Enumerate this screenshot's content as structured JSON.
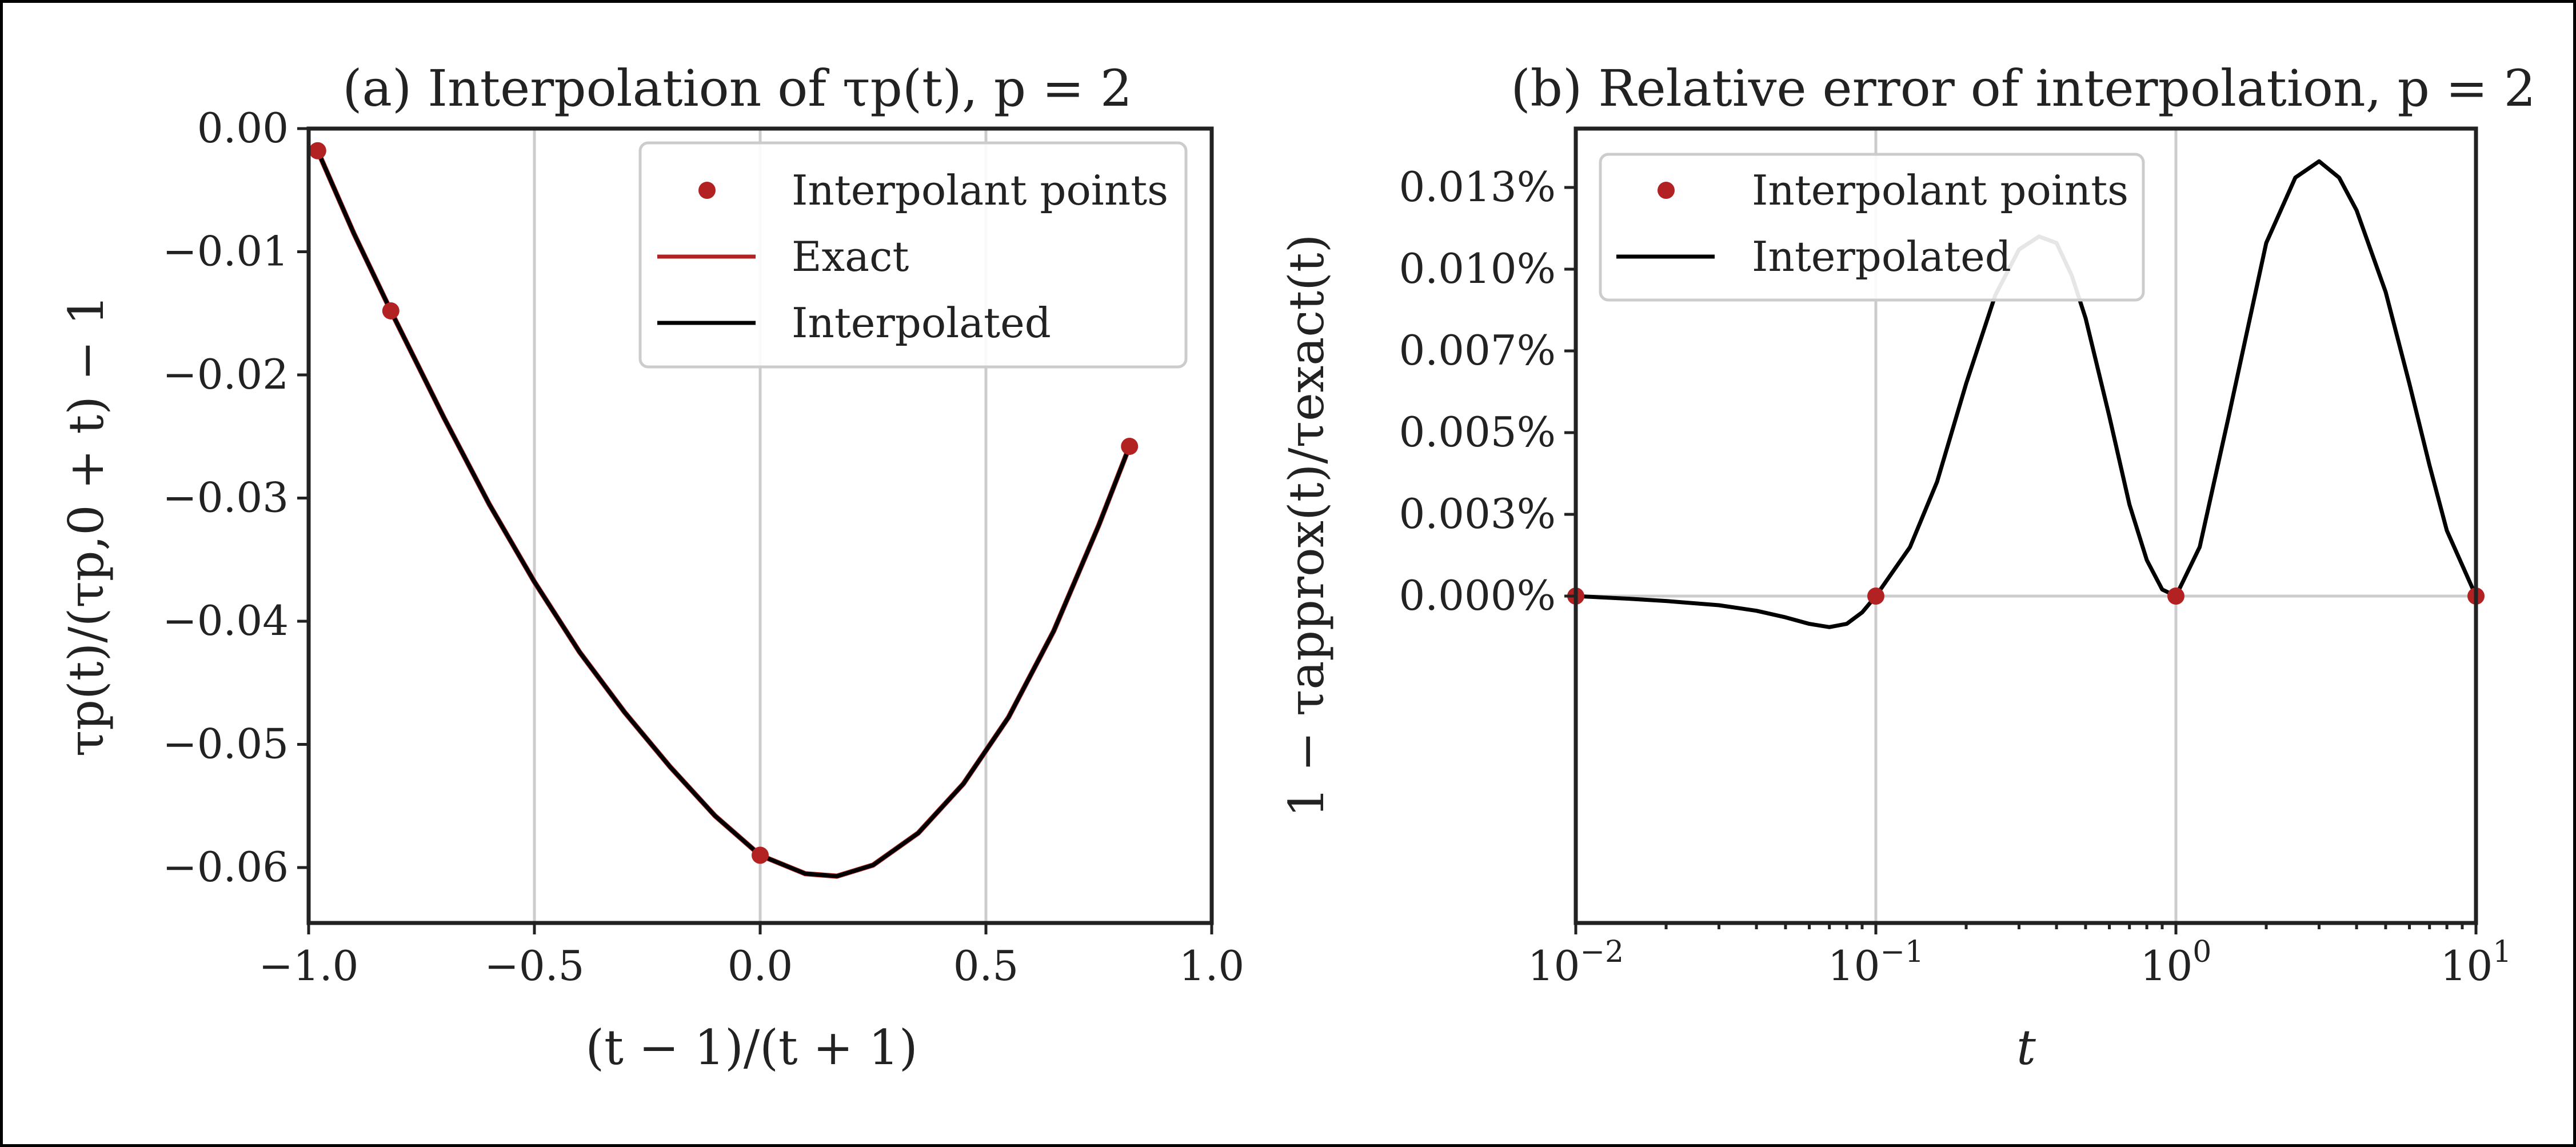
{
  "colors": {
    "exact": "#b22222",
    "interpolated": "#000000",
    "points": "#b22222",
    "grid": "#cccccc",
    "frame": "#222222"
  },
  "chart_data": [
    {
      "id": "a",
      "type": "line",
      "title": "(a) Interpolation of τp(t), p = 2",
      "xlabel": "(t − 1)/(t + 1)",
      "ylabel": "τp(t)/(τp,0 + t) − 1",
      "xlim": [
        -1.0,
        1.0
      ],
      "ylim": [
        -0.0645,
        0.0
      ],
      "x_scale": "linear",
      "xticks": [
        -1.0,
        -0.5,
        0.0,
        0.5,
        1.0
      ],
      "xtick_labels": [
        "−1.0",
        "−0.5",
        "0.0",
        "0.5",
        "1.0"
      ],
      "yticks": [
        0.0,
        -0.01,
        -0.02,
        -0.03,
        -0.04,
        -0.05,
        -0.06
      ],
      "ytick_labels": [
        "0.00",
        "−0.01",
        "−0.02",
        "−0.03",
        "−0.04",
        "−0.05",
        "−0.06"
      ],
      "grid": "vertical",
      "legend_position": "top-right",
      "legend": [
        "Interpolant points",
        "Exact",
        "Interpolated"
      ],
      "series": [
        {
          "name": "Interpolant points",
          "kind": "points",
          "x": [
            -0.98,
            -0.818,
            0.0,
            0.818
          ],
          "y": [
            -0.0018,
            -0.0148,
            -0.059,
            -0.0258
          ]
        },
        {
          "name": "Exact",
          "kind": "line",
          "x": [
            -0.98,
            -0.9,
            -0.818,
            -0.7,
            -0.6,
            -0.5,
            -0.4,
            -0.3,
            -0.2,
            -0.1,
            0.0,
            0.1,
            0.17,
            0.25,
            0.35,
            0.45,
            0.55,
            0.65,
            0.75,
            0.818
          ],
          "y": [
            -0.0018,
            -0.0085,
            -0.0148,
            -0.0235,
            -0.0305,
            -0.0368,
            -0.0425,
            -0.0474,
            -0.0518,
            -0.0558,
            -0.059,
            -0.0605,
            -0.0607,
            -0.0598,
            -0.0572,
            -0.0532,
            -0.0478,
            -0.0408,
            -0.0322,
            -0.0258
          ]
        },
        {
          "name": "Interpolated",
          "kind": "line",
          "x": [
            -0.98,
            -0.9,
            -0.818,
            -0.7,
            -0.6,
            -0.5,
            -0.4,
            -0.3,
            -0.2,
            -0.1,
            0.0,
            0.1,
            0.17,
            0.25,
            0.35,
            0.45,
            0.55,
            0.65,
            0.75,
            0.818
          ],
          "y": [
            -0.0018,
            -0.0085,
            -0.0148,
            -0.0235,
            -0.0305,
            -0.0368,
            -0.0425,
            -0.0474,
            -0.0518,
            -0.0558,
            -0.059,
            -0.0605,
            -0.0607,
            -0.0598,
            -0.0572,
            -0.0532,
            -0.0478,
            -0.0408,
            -0.0322,
            -0.0258
          ]
        }
      ]
    },
    {
      "id": "b",
      "type": "line",
      "title": "(b) Relative error of interpolation, p = 2",
      "xlabel": "t",
      "ylabel": "1 − τapprox(t)/τexact(t)",
      "xlim": [
        0.01,
        10
      ],
      "ylim": [
        -0.0001,
        0.000143
      ],
      "x_scale": "log",
      "xticks": [
        0.01,
        0.1,
        1,
        10
      ],
      "xtick_labels": [
        "10−2",
        "10−1",
        "100",
        "101"
      ],
      "yticks": [
        0.0,
        2.5e-05,
        5e-05,
        7.5e-05,
        0.0001,
        0.000125
      ],
      "ytick_labels": [
        "0.000%",
        "0.003%",
        "0.005%",
        "0.007%",
        "0.010%",
        "0.013%"
      ],
      "grid": "vertical+zero",
      "legend_position": "top-left",
      "legend": [
        "Interpolant points",
        "Interpolated"
      ],
      "series": [
        {
          "name": "Interpolant points",
          "kind": "points",
          "x": [
            0.01,
            0.1,
            1,
            10
          ],
          "y": [
            0.0,
            0.0,
            0.0,
            0.0
          ]
        },
        {
          "name": "Interpolated",
          "kind": "line",
          "x": [
            0.01,
            0.015,
            0.02,
            0.03,
            0.04,
            0.05,
            0.06,
            0.07,
            0.08,
            0.09,
            0.1,
            0.13,
            0.16,
            0.2,
            0.25,
            0.3,
            0.35,
            0.4,
            0.45,
            0.5,
            0.6,
            0.7,
            0.8,
            0.9,
            1.0,
            1.2,
            1.5,
            2.0,
            2.5,
            3.0,
            3.5,
            4.0,
            5.0,
            6.0,
            7.0,
            8.0,
            10.0
          ],
          "y": [
            0.0,
            -8e-07,
            -1.5e-06,
            -2.8e-06,
            -4.5e-06,
            -6.5e-06,
            -8.5e-06,
            -9.5e-06,
            -8.5e-06,
            -5e-06,
            0.0,
            1.5e-05,
            3.5e-05,
            6.5e-05,
            9.2e-05,
            0.000106,
            0.00011,
            0.000108,
            9.8e-05,
            8.5e-05,
            5.5e-05,
            2.8e-05,
            1.1e-05,
            2e-06,
            0.0,
            1.5e-05,
            5.5e-05,
            0.000108,
            0.000128,
            0.000133,
            0.000128,
            0.000118,
            9.3e-05,
            6.5e-05,
            4e-05,
            2e-05,
            0.0
          ]
        }
      ]
    }
  ]
}
